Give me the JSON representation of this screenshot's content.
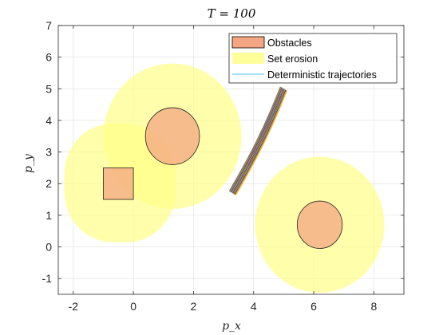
{
  "chart_data": {
    "type": "scatter",
    "title": "T = 100",
    "xlabel": "p_x",
    "ylabel": "p_y",
    "xlim": [
      -2.5,
      9
    ],
    "ylim": [
      -1.5,
      7
    ],
    "xticks": [
      -2,
      0,
      2,
      4,
      6,
      8
    ],
    "yticks": [
      -1,
      0,
      1,
      2,
      3,
      4,
      5,
      6,
      7
    ],
    "xtick_labels": [
      "-2",
      "0",
      "2",
      "4",
      "6",
      "8"
    ],
    "ytick_labels": [
      "-1",
      "0",
      "1",
      "2",
      "3",
      "4",
      "5",
      "6",
      "7"
    ],
    "grid": true,
    "legend_position": "top-right",
    "legend": [
      "Obstacles",
      "Set erosion",
      "Deterministic trajectories"
    ],
    "obstacles": [
      {
        "shape": "ellipse",
        "center": [
          1.3,
          3.5
        ],
        "radii": [
          0.9,
          0.9
        ]
      },
      {
        "shape": "rectangle",
        "x": [
          -1.0,
          0.0
        ],
        "y": [
          1.5,
          2.5
        ]
      },
      {
        "shape": "ellipse",
        "center": [
          6.2,
          0.7
        ],
        "radii": [
          0.75,
          0.75
        ]
      }
    ],
    "set_erosion": [
      {
        "shape": "circle",
        "center": [
          1.3,
          3.5
        ],
        "radius": 2.3
      },
      {
        "shape": "rounded-rectangle",
        "x": [
          -2.3,
          1.4
        ],
        "y": [
          0.15,
          3.9
        ],
        "radius": 1.6
      },
      {
        "shape": "circle",
        "center": [
          6.2,
          0.7
        ],
        "radius": 2.15
      }
    ],
    "trajectories": {
      "count": 24,
      "start": [
        5.0,
        5.0
      ],
      "end": [
        3.3,
        1.7
      ],
      "spread": 0.2
    },
    "colors": {
      "obstacle_fill": "#f4a582",
      "obstacle_edge": "#222222",
      "erosion_fill": "#ffff88",
      "trajectory_legend": "#4dbeee"
    }
  }
}
